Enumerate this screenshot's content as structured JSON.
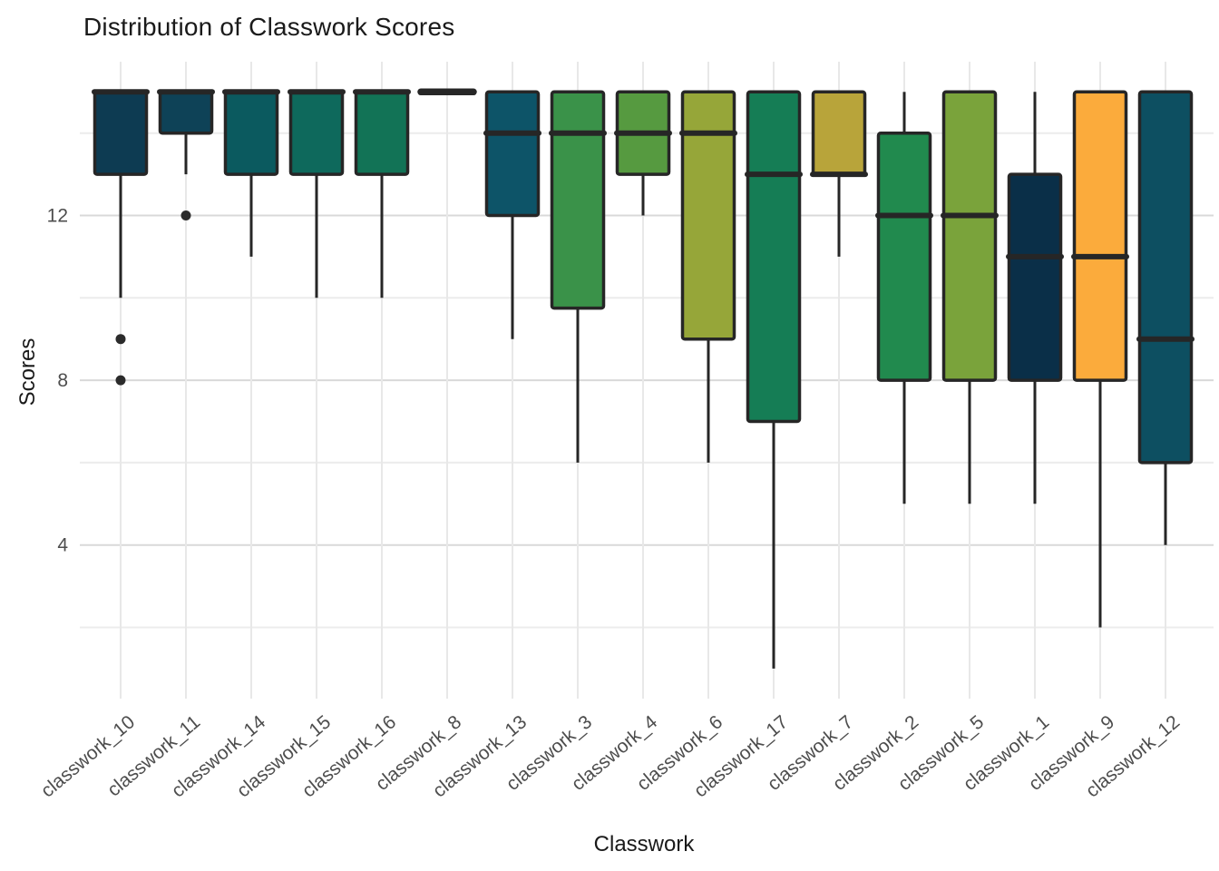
{
  "title": "Distribution of Classwork Scores",
  "axes": {
    "x_title": "Classwork",
    "y_title": "Scores",
    "y_tick_labels": [
      "4",
      "8",
      "12"
    ]
  },
  "style": {
    "background": "#ffffff",
    "box_border_color": "#262626",
    "median_color": "#262626",
    "whisker_color": "#262626",
    "outlier_color": "#2b2b2b",
    "grid_major_color": "#d9d9d9",
    "grid_minor_color": "#ececec",
    "grid_vertical_color": "#e8e8e8",
    "title_color": "#1a1a1a",
    "tick_label_color": "#4d4d4d"
  },
  "chart_data": {
    "type": "boxplot",
    "title": "Distribution of Classwork Scores",
    "xlabel": "Classwork",
    "ylabel": "Scores",
    "ylim": [
      0.4,
      15.7
    ],
    "y_major_ticks": [
      4,
      8,
      12
    ],
    "y_minor_gridlines": [
      2,
      6,
      10,
      14
    ],
    "grid": true,
    "legend": false,
    "categories": [
      "classwork_10",
      "classwork_11",
      "classwork_14",
      "classwork_15",
      "classwork_16",
      "classwork_8",
      "classwork_13",
      "classwork_3",
      "classwork_4",
      "classwork_6",
      "classwork_17",
      "classwork_7",
      "classwork_2",
      "classwork_5",
      "classwork_1",
      "classwork_9",
      "classwork_12"
    ],
    "series": [
      {
        "label": "classwork_10",
        "color": "#0d3b52",
        "whisker_low": 10,
        "q1": 13,
        "median": 15,
        "q3": 15,
        "whisker_high": 15,
        "outliers": [
          9,
          8
        ]
      },
      {
        "label": "classwork_11",
        "color": "#0e4257",
        "whisker_low": 13,
        "q1": 14,
        "median": 15,
        "q3": 15,
        "whisker_high": 15,
        "outliers": [
          12
        ]
      },
      {
        "label": "classwork_14",
        "color": "#0b5a5f",
        "whisker_low": 11,
        "q1": 13,
        "median": 15,
        "q3": 15,
        "whisker_high": 15,
        "outliers": []
      },
      {
        "label": "classwork_15",
        "color": "#0e695c",
        "whisker_low": 10,
        "q1": 13,
        "median": 15,
        "q3": 15,
        "whisker_high": 15,
        "outliers": []
      },
      {
        "label": "classwork_16",
        "color": "#127356",
        "whisker_low": 10,
        "q1": 13,
        "median": 15,
        "q3": 15,
        "whisker_high": 15,
        "outliers": []
      },
      {
        "label": "classwork_8",
        "color": "#222222",
        "whisker_low": 15,
        "q1": 15,
        "median": 15,
        "q3": 15,
        "whisker_high": 15,
        "outliers": []
      },
      {
        "label": "classwork_13",
        "color": "#0d5468",
        "whisker_low": 9,
        "q1": 12,
        "median": 14,
        "q3": 15,
        "whisker_high": 15,
        "outliers": []
      },
      {
        "label": "classwork_3",
        "color": "#3a9249",
        "whisker_low": 6,
        "q1": 9.75,
        "median": 14,
        "q3": 15,
        "whisker_high": 15,
        "outliers": []
      },
      {
        "label": "classwork_4",
        "color": "#569a40",
        "whisker_low": 12,
        "q1": 13,
        "median": 14,
        "q3": 15,
        "whisker_high": 15,
        "outliers": []
      },
      {
        "label": "classwork_6",
        "color": "#96a639",
        "whisker_low": 6,
        "q1": 9,
        "median": 14,
        "q3": 15,
        "whisker_high": 15,
        "outliers": []
      },
      {
        "label": "classwork_17",
        "color": "#157d55",
        "whisker_low": 1,
        "q1": 7,
        "median": 13,
        "q3": 15,
        "whisker_high": 15,
        "outliers": []
      },
      {
        "label": "classwork_7",
        "color": "#b8a43a",
        "whisker_low": 11,
        "q1": 13,
        "median": 13,
        "q3": 15,
        "whisker_high": 15,
        "outliers": []
      },
      {
        "label": "classwork_2",
        "color": "#218a4e",
        "whisker_low": 5,
        "q1": 8,
        "median": 12,
        "q3": 14,
        "whisker_high": 15,
        "outliers": []
      },
      {
        "label": "classwork_5",
        "color": "#7aa33b",
        "whisker_low": 5,
        "q1": 8,
        "median": 12,
        "q3": 15,
        "whisker_high": 15,
        "outliers": []
      },
      {
        "label": "classwork_1",
        "color": "#0a2f48",
        "whisker_low": 5,
        "q1": 8,
        "median": 11,
        "q3": 13,
        "whisker_high": 15,
        "outliers": []
      },
      {
        "label": "classwork_9",
        "color": "#fbab3c",
        "whisker_low": 2,
        "q1": 8,
        "median": 11,
        "q3": 15,
        "whisker_high": 15,
        "outliers": []
      },
      {
        "label": "classwork_12",
        "color": "#0d4f61",
        "whisker_low": 4,
        "q1": 6,
        "median": 9,
        "q3": 15,
        "whisker_high": 15,
        "outliers": []
      }
    ]
  }
}
